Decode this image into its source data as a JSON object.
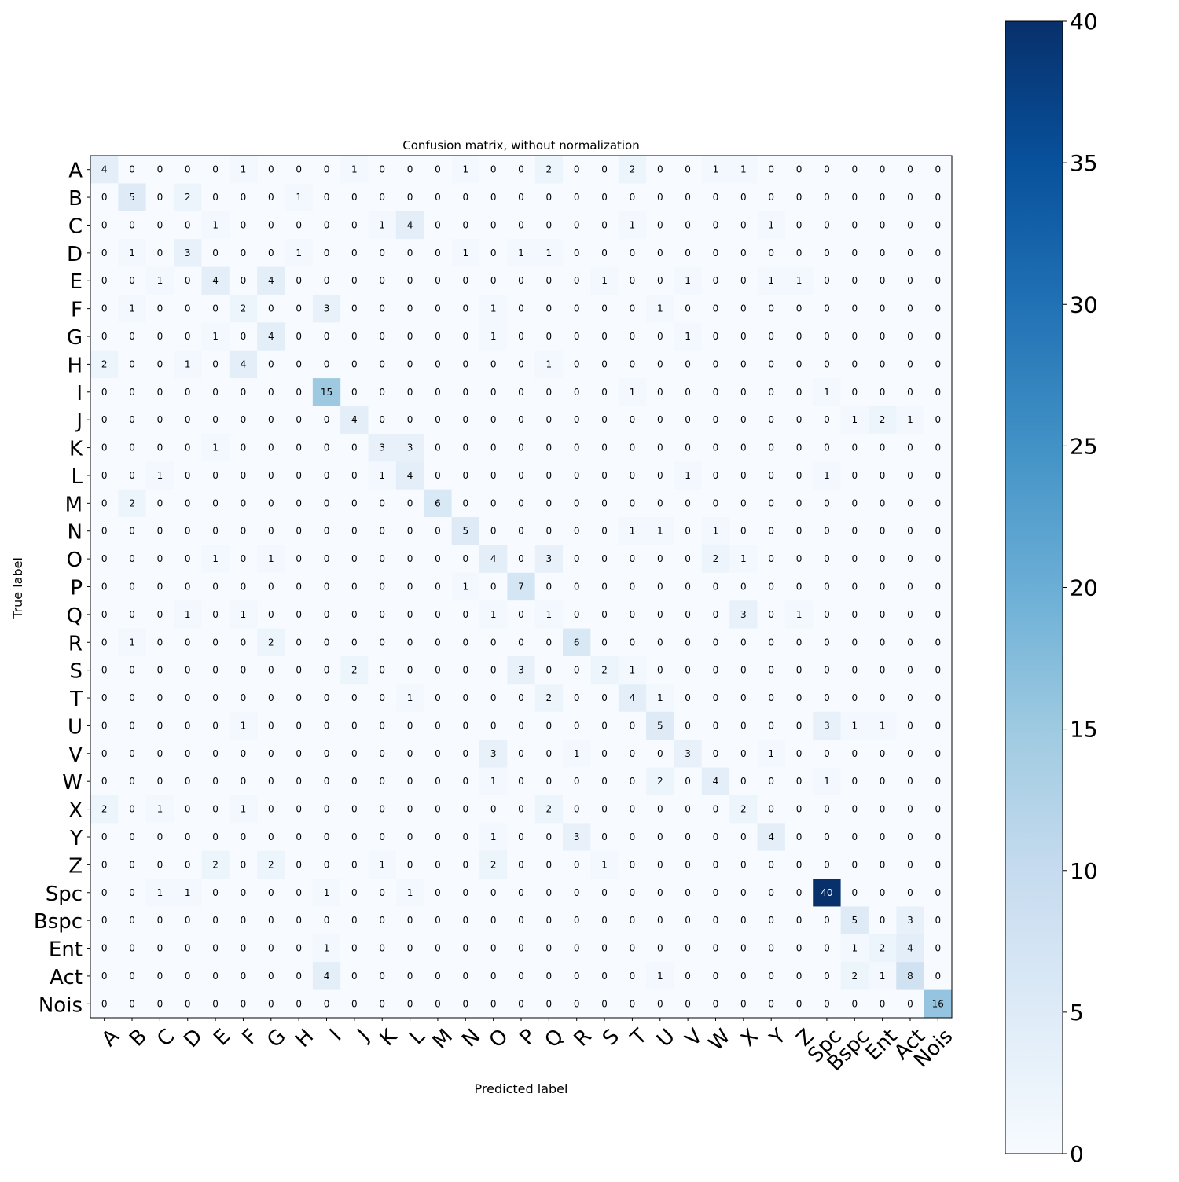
{
  "chart_data": {
    "type": "heatmap",
    "title": "Confusion matrix, without normalization",
    "xlabel": "Predicted label",
    "ylabel": "True label",
    "labels": [
      "A",
      "B",
      "C",
      "D",
      "E",
      "F",
      "G",
      "H",
      "I",
      "J",
      "K",
      "L",
      "M",
      "N",
      "O",
      "P",
      "Q",
      "R",
      "S",
      "T",
      "U",
      "V",
      "W",
      "X",
      "Y",
      "Z",
      "Spc",
      "Bspc",
      "Ent",
      "Act",
      "Nois"
    ],
    "matrix": [
      [
        4,
        0,
        0,
        0,
        0,
        1,
        0,
        0,
        0,
        1,
        0,
        0,
        0,
        1,
        0,
        0,
        2,
        0,
        0,
        2,
        0,
        0,
        1,
        1,
        0,
        0,
        0,
        0,
        0,
        0,
        0
      ],
      [
        0,
        5,
        0,
        2,
        0,
        0,
        0,
        1,
        0,
        0,
        0,
        0,
        0,
        0,
        0,
        0,
        0,
        0,
        0,
        0,
        0,
        0,
        0,
        0,
        0,
        0,
        0,
        0,
        0,
        0,
        0
      ],
      [
        0,
        0,
        0,
        0,
        1,
        0,
        0,
        0,
        0,
        0,
        1,
        4,
        0,
        0,
        0,
        0,
        0,
        0,
        0,
        1,
        0,
        0,
        0,
        0,
        1,
        0,
        0,
        0,
        0,
        0,
        0
      ],
      [
        0,
        1,
        0,
        3,
        0,
        0,
        0,
        1,
        0,
        0,
        0,
        0,
        0,
        1,
        0,
        1,
        1,
        0,
        0,
        0,
        0,
        0,
        0,
        0,
        0,
        0,
        0,
        0,
        0,
        0,
        0
      ],
      [
        0,
        0,
        1,
        0,
        4,
        0,
        4,
        0,
        0,
        0,
        0,
        0,
        0,
        0,
        0,
        0,
        0,
        0,
        1,
        0,
        0,
        1,
        0,
        0,
        1,
        1,
        0,
        0,
        0,
        0,
        0
      ],
      [
        0,
        1,
        0,
        0,
        0,
        2,
        0,
        0,
        3,
        0,
        0,
        0,
        0,
        0,
        1,
        0,
        0,
        0,
        0,
        0,
        1,
        0,
        0,
        0,
        0,
        0,
        0,
        0,
        0,
        0,
        0
      ],
      [
        0,
        0,
        0,
        0,
        1,
        0,
        4,
        0,
        0,
        0,
        0,
        0,
        0,
        0,
        1,
        0,
        0,
        0,
        0,
        0,
        0,
        1,
        0,
        0,
        0,
        0,
        0,
        0,
        0,
        0,
        0
      ],
      [
        2,
        0,
        0,
        1,
        0,
        4,
        0,
        0,
        0,
        0,
        0,
        0,
        0,
        0,
        0,
        0,
        1,
        0,
        0,
        0,
        0,
        0,
        0,
        0,
        0,
        0,
        0,
        0,
        0,
        0,
        0
      ],
      [
        0,
        0,
        0,
        0,
        0,
        0,
        0,
        0,
        15,
        0,
        0,
        0,
        0,
        0,
        0,
        0,
        0,
        0,
        0,
        1,
        0,
        0,
        0,
        0,
        0,
        0,
        1,
        0,
        0,
        0,
        0
      ],
      [
        0,
        0,
        0,
        0,
        0,
        0,
        0,
        0,
        0,
        4,
        0,
        0,
        0,
        0,
        0,
        0,
        0,
        0,
        0,
        0,
        0,
        0,
        0,
        0,
        0,
        0,
        0,
        1,
        2,
        1,
        0
      ],
      [
        0,
        0,
        0,
        0,
        1,
        0,
        0,
        0,
        0,
        0,
        3,
        3,
        0,
        0,
        0,
        0,
        0,
        0,
        0,
        0,
        0,
        0,
        0,
        0,
        0,
        0,
        0,
        0,
        0,
        0,
        0
      ],
      [
        0,
        0,
        1,
        0,
        0,
        0,
        0,
        0,
        0,
        0,
        1,
        4,
        0,
        0,
        0,
        0,
        0,
        0,
        0,
        0,
        0,
        1,
        0,
        0,
        0,
        0,
        1,
        0,
        0,
        0,
        0
      ],
      [
        0,
        2,
        0,
        0,
        0,
        0,
        0,
        0,
        0,
        0,
        0,
        0,
        6,
        0,
        0,
        0,
        0,
        0,
        0,
        0,
        0,
        0,
        0,
        0,
        0,
        0,
        0,
        0,
        0,
        0,
        0
      ],
      [
        0,
        0,
        0,
        0,
        0,
        0,
        0,
        0,
        0,
        0,
        0,
        0,
        0,
        5,
        0,
        0,
        0,
        0,
        0,
        1,
        1,
        0,
        1,
        0,
        0,
        0,
        0,
        0,
        0,
        0,
        0
      ],
      [
        0,
        0,
        0,
        0,
        1,
        0,
        1,
        0,
        0,
        0,
        0,
        0,
        0,
        0,
        4,
        0,
        3,
        0,
        0,
        0,
        0,
        0,
        2,
        1,
        0,
        0,
        0,
        0,
        0,
        0,
        0
      ],
      [
        0,
        0,
        0,
        0,
        0,
        0,
        0,
        0,
        0,
        0,
        0,
        0,
        0,
        1,
        0,
        7,
        0,
        0,
        0,
        0,
        0,
        0,
        0,
        0,
        0,
        0,
        0,
        0,
        0,
        0,
        0
      ],
      [
        0,
        0,
        0,
        1,
        0,
        1,
        0,
        0,
        0,
        0,
        0,
        0,
        0,
        0,
        1,
        0,
        1,
        0,
        0,
        0,
        0,
        0,
        0,
        3,
        0,
        1,
        0,
        0,
        0,
        0,
        0
      ],
      [
        0,
        1,
        0,
        0,
        0,
        0,
        2,
        0,
        0,
        0,
        0,
        0,
        0,
        0,
        0,
        0,
        0,
        6,
        0,
        0,
        0,
        0,
        0,
        0,
        0,
        0,
        0,
        0,
        0,
        0,
        0
      ],
      [
        0,
        0,
        0,
        0,
        0,
        0,
        0,
        0,
        0,
        2,
        0,
        0,
        0,
        0,
        0,
        3,
        0,
        0,
        2,
        1,
        0,
        0,
        0,
        0,
        0,
        0,
        0,
        0,
        0,
        0,
        0
      ],
      [
        0,
        0,
        0,
        0,
        0,
        0,
        0,
        0,
        0,
        0,
        0,
        1,
        0,
        0,
        0,
        0,
        2,
        0,
        0,
        4,
        1,
        0,
        0,
        0,
        0,
        0,
        0,
        0,
        0,
        0,
        0
      ],
      [
        0,
        0,
        0,
        0,
        0,
        1,
        0,
        0,
        0,
        0,
        0,
        0,
        0,
        0,
        0,
        0,
        0,
        0,
        0,
        0,
        5,
        0,
        0,
        0,
        0,
        0,
        3,
        1,
        1,
        0,
        0
      ],
      [
        0,
        0,
        0,
        0,
        0,
        0,
        0,
        0,
        0,
        0,
        0,
        0,
        0,
        0,
        3,
        0,
        0,
        1,
        0,
        0,
        0,
        3,
        0,
        0,
        1,
        0,
        0,
        0,
        0,
        0,
        0
      ],
      [
        0,
        0,
        0,
        0,
        0,
        0,
        0,
        0,
        0,
        0,
        0,
        0,
        0,
        0,
        1,
        0,
        0,
        0,
        0,
        0,
        2,
        0,
        4,
        0,
        0,
        0,
        1,
        0,
        0,
        0,
        0
      ],
      [
        2,
        0,
        1,
        0,
        0,
        1,
        0,
        0,
        0,
        0,
        0,
        0,
        0,
        0,
        0,
        0,
        2,
        0,
        0,
        0,
        0,
        0,
        0,
        2,
        0,
        0,
        0,
        0,
        0,
        0,
        0
      ],
      [
        0,
        0,
        0,
        0,
        0,
        0,
        0,
        0,
        0,
        0,
        0,
        0,
        0,
        0,
        1,
        0,
        0,
        3,
        0,
        0,
        0,
        0,
        0,
        0,
        4,
        0,
        0,
        0,
        0,
        0,
        0
      ],
      [
        0,
        0,
        0,
        0,
        2,
        0,
        2,
        0,
        0,
        0,
        1,
        0,
        0,
        0,
        2,
        0,
        0,
        0,
        1,
        0,
        0,
        0,
        0,
        0,
        0,
        0,
        0,
        0,
        0,
        0,
        0
      ],
      [
        0,
        0,
        1,
        1,
        0,
        0,
        0,
        0,
        1,
        0,
        0,
        1,
        0,
        0,
        0,
        0,
        0,
        0,
        0,
        0,
        0,
        0,
        0,
        0,
        0,
        0,
        40,
        0,
        0,
        0,
        0
      ],
      [
        0,
        0,
        0,
        0,
        0,
        0,
        0,
        0,
        0,
        0,
        0,
        0,
        0,
        0,
        0,
        0,
        0,
        0,
        0,
        0,
        0,
        0,
        0,
        0,
        0,
        0,
        0,
        5,
        0,
        3,
        0
      ],
      [
        0,
        0,
        0,
        0,
        0,
        0,
        0,
        0,
        1,
        0,
        0,
        0,
        0,
        0,
        0,
        0,
        0,
        0,
        0,
        0,
        0,
        0,
        0,
        0,
        0,
        0,
        0,
        1,
        2,
        4,
        0
      ],
      [
        0,
        0,
        0,
        0,
        0,
        0,
        0,
        0,
        4,
        0,
        0,
        0,
        0,
        0,
        0,
        0,
        0,
        0,
        0,
        0,
        1,
        0,
        0,
        0,
        0,
        0,
        0,
        2,
        1,
        8,
        0
      ],
      [
        0,
        0,
        0,
        0,
        0,
        0,
        0,
        0,
        0,
        0,
        0,
        0,
        0,
        0,
        0,
        0,
        0,
        0,
        0,
        0,
        0,
        0,
        0,
        0,
        0,
        0,
        0,
        0,
        0,
        0,
        16
      ]
    ],
    "colorbar": {
      "min": 0,
      "max": 40,
      "ticks": [
        0,
        5,
        10,
        15,
        20,
        25,
        30,
        35,
        40
      ]
    },
    "colormap": "Blues",
    "grid": false
  }
}
